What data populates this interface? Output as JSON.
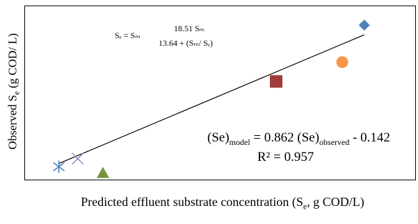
{
  "chart_data": {
    "type": "scatter",
    "title": "",
    "xlabel": "Predicted effluent substrate concentration (S",
    "xlabel_sub": "e",
    "xlabel_tail": ", g COD/L)",
    "ylabel_head": "Observed S",
    "ylabel_sub": "e",
    "ylabel_tail": " (g COD/ L)",
    "grid": false,
    "points": [
      {
        "marker": "star",
        "color": "#4a7ebb",
        "x": 0.05,
        "y": 0.05
      },
      {
        "marker": "x",
        "color": "#9b8fc7",
        "x": 0.11,
        "y": 0.1
      },
      {
        "marker": "triangle",
        "color": "#77933c",
        "x": 0.19,
        "y": 0.01
      },
      {
        "marker": "square",
        "color": "#a03c3c",
        "x": 0.74,
        "y": 0.58
      },
      {
        "marker": "circle",
        "color": "#f79646",
        "x": 0.95,
        "y": 0.7
      },
      {
        "marker": "diamond",
        "color": "#4f81bd",
        "x": 1.02,
        "y": 0.93
      }
    ],
    "trendline": {
      "x": [
        0.05,
        1.02
      ],
      "y": [
        0.07,
        0.87
      ]
    },
    "xlim": [
      0.0,
      1.1
    ],
    "ylim": [
      0.0,
      1.0
    ]
  },
  "annotations": {
    "model_lhs": "Sₑ = Sₘ",
    "model_num": "18.51 Sₘ",
    "model_den": "13.64 + (Sₘ/ Sₑ)",
    "fit_lhs": "(Se)",
    "fit_lhs_sub": "model",
    "fit_mid": " = 0.862 (Se)",
    "fit_mid_sub": "observed",
    "fit_tail": " - 0.142",
    "r2": "R² = 0.957"
  }
}
